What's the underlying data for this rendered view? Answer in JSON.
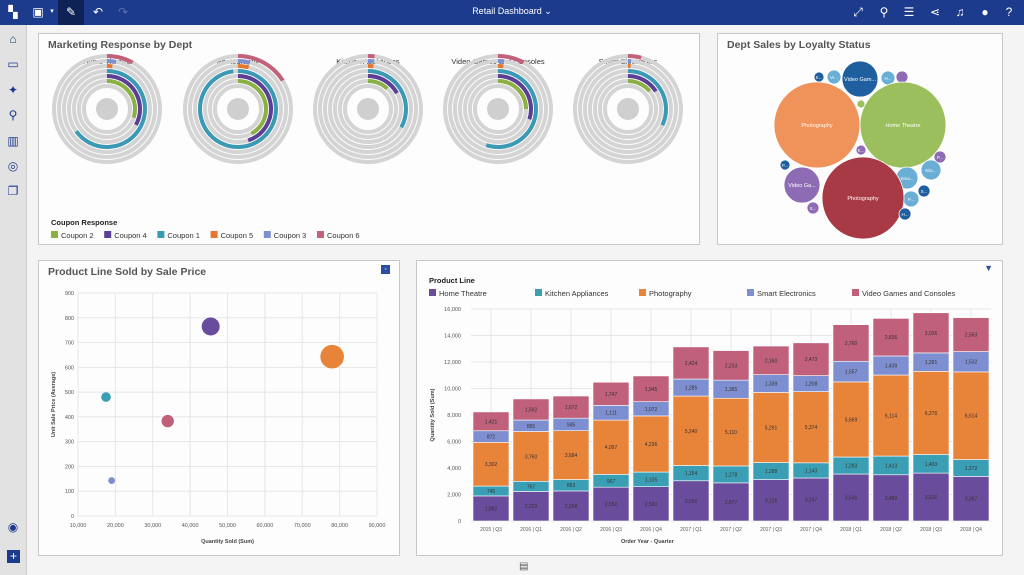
{
  "header": {
    "title": "Retail Dashboard",
    "icons": [
      "app-grid-icon",
      "save-icon",
      "chevron-down-icon",
      "pencil-icon",
      "undo-icon",
      "redo-icon",
      "expand-icon",
      "connect-icon",
      "filter-sliders-icon",
      "share-icon",
      "bell-icon",
      "user-icon",
      "help-icon"
    ]
  },
  "sidebar": {
    "icons": [
      "home-icon",
      "folder-icon",
      "pin-icon",
      "search-data-icon",
      "chart-icon",
      "chat-search-icon",
      "layers-icon",
      "assistant-icon",
      "add-icon"
    ]
  },
  "colors": {
    "topbar": "#1c3b8c",
    "home_theatre": "#6a4c9c",
    "kitchen": "#3a9fb5",
    "photography": "#e8833a",
    "smart_electronics": "#7d8fd0",
    "video_games": "#c0607a"
  },
  "chart_data": [
    {
      "type": "radial-bar",
      "title": "Marketing Response by Dept",
      "legend_title": "Coupon Response",
      "series": [
        {
          "name": "Coupon 2",
          "color": "#8bb144"
        },
        {
          "name": "Coupon 4",
          "color": "#5b3e96"
        },
        {
          "name": "Coupon 1",
          "color": "#3a9ab5"
        },
        {
          "name": "Coupon 5",
          "color": "#e5772e"
        },
        {
          "name": "Coupon 3",
          "color": "#7d8fd0"
        },
        {
          "name": "Coupon 6",
          "color": "#c4607a"
        }
      ],
      "departments": [
        {
          "name": "Home Theatre",
          "values": [
            0.3,
            0.33,
            0.65,
            0.02,
            0.03,
            0.08
          ]
        },
        {
          "name": "Photography",
          "values": [
            0.42,
            0.45,
            0.98,
            0.04,
            0.04,
            0.16
          ]
        },
        {
          "name": "Kitchen Appliances",
          "values": [
            0.12,
            0.17,
            0.33,
            0.02,
            0.02,
            0.02
          ]
        },
        {
          "name": "Video Games and Consoles",
          "values": [
            0.25,
            0.3,
            0.55,
            0.02,
            0.02,
            0.08
          ]
        },
        {
          "name": "Smart Electronics",
          "values": [
            0.14,
            0.16,
            0.32,
            0.01,
            0.01,
            0.04
          ]
        }
      ]
    },
    {
      "type": "bubble-pack",
      "title": "Dept Sales by Loyalty Status",
      "bubbles": [
        {
          "label": "K...",
          "color": "#1f5fa0"
        },
        {
          "label": "Vi...",
          "color": "#6aaed6"
        },
        {
          "label": "Video Gam...",
          "color": "#1f5fa0"
        },
        {
          "label": "H...",
          "color": "#6aaed6"
        },
        {
          "label": "",
          "color": "#8e6bb5"
        },
        {
          "label": "Photography",
          "color": "#f0935a"
        },
        {
          "label": "Home Theatre",
          "color": "#9bbf5c"
        },
        {
          "label": "",
          "color": "#9bbf5c"
        },
        {
          "label": "K...",
          "color": "#8e6bb5"
        },
        {
          "label": "P...",
          "color": "#8e6bb5"
        },
        {
          "label": "P...",
          "color": "#1f5fa0"
        },
        {
          "label": "Kitc...",
          "color": "#6aaed6"
        },
        {
          "label": "Sma...",
          "color": "#6aaed6"
        },
        {
          "label": "Video Ga...",
          "color": "#8e6bb5"
        },
        {
          "label": "S...",
          "color": "#1f5fa0"
        },
        {
          "label": "P...",
          "color": "#6aaed6"
        },
        {
          "label": "Photography",
          "color": "#a83a45"
        },
        {
          "label": "S...",
          "color": "#8e6bb5"
        },
        {
          "label": "H...",
          "color": "#1f5fa0"
        }
      ]
    },
    {
      "type": "scatter",
      "title": "Product Line Sold by Sale Price",
      "xlabel": "Quantity Sold (Sum)",
      "ylabel": "Unit Sale Price (Average)",
      "xlim": [
        10000,
        90000
      ],
      "ylim": [
        0,
        900
      ],
      "xticks": [
        "10,000",
        "20,000",
        "30,000",
        "40,000",
        "50,000",
        "60,000",
        "70,000",
        "80,000",
        "90,000"
      ],
      "yticks": [
        "0",
        "100",
        "200",
        "300",
        "400",
        "500",
        "600",
        "700",
        "800",
        "900"
      ],
      "grid": true,
      "points": [
        {
          "x": 17500,
          "y": 480,
          "size": 2,
          "color": "#3a9fb5"
        },
        {
          "x": 19000,
          "y": 143,
          "size": 1,
          "color": "#7d8fd0"
        },
        {
          "x": 34000,
          "y": 383,
          "size": 3,
          "color": "#c0607a"
        },
        {
          "x": 45500,
          "y": 765,
          "size": 5,
          "color": "#6a4c9c"
        },
        {
          "x": 78000,
          "y": 643,
          "size": 7,
          "color": "#e8833a"
        }
      ]
    },
    {
      "type": "bar",
      "stacked": true,
      "legend_title": "Product Line",
      "legend": "top",
      "xlabel": "Order Year - Quarter",
      "ylabel": "Quantity Sold (Sum)",
      "ylim": [
        0,
        16000
      ],
      "yticks": [
        "0",
        "2,000",
        "4,000",
        "6,000",
        "8,000",
        "10,000",
        "12,000",
        "14,000",
        "16,000"
      ],
      "categories": [
        "2015 | Q3",
        "2016 | Q1",
        "2016 | Q2",
        "2016 | Q3",
        "2016 | Q4",
        "2017 | Q1",
        "2017 | Q2",
        "2017 | Q3",
        "2017 | Q4",
        "2018 | Q1",
        "2018 | Q2",
        "2018 | Q3",
        "2018 | Q4"
      ],
      "series": [
        {
          "name": "Home Theatre",
          "color": "#6a4c9c",
          "values": [
            1892,
            2229,
            2268,
            2552,
            2590,
            3036,
            2877,
            3126,
            3247,
            3546,
            3489,
            3616,
            3367
          ]
        },
        {
          "name": "Kitchen Appliances",
          "color": "#3a9fb5",
          "values": [
            745,
            767,
            863,
            967,
            1105,
            1154,
            1278,
            1288,
            1143,
            1283,
            1413,
            1403,
            1272
          ]
        },
        {
          "name": "Photography",
          "color": "#e8833a",
          "values": [
            3302,
            3760,
            3684,
            4097,
            4236,
            5240,
            5110,
            5291,
            5374,
            5669,
            6114,
            6276,
            6614
          ]
        },
        {
          "name": "Smart Electronics",
          "color": "#7d8fd0",
          "values": [
            872,
            865,
            945,
            1111,
            1072,
            1285,
            1365,
            1339,
            1208,
            1557,
            1439,
            1391,
            1532
          ]
        },
        {
          "name": "Video Games and Consoles",
          "color": "#c0607a",
          "values": [
            1421,
            1592,
            1672,
            1747,
            1945,
            2424,
            2233,
            2160,
            2473,
            2760,
            2836,
            3026,
            2563
          ]
        }
      ]
    }
  ]
}
